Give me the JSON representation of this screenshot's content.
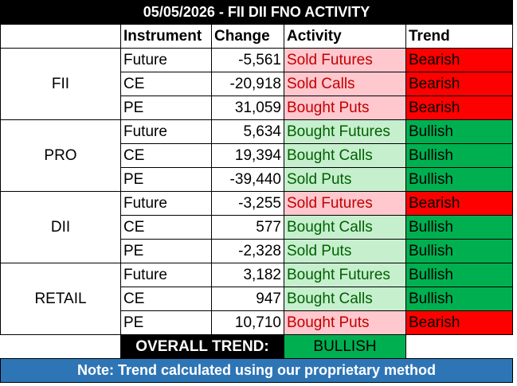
{
  "title": "05/05/2026 - FII DII FNO ACTIVITY",
  "headers": {
    "instrument": "Instrument",
    "change": "Change",
    "activity": "Activity",
    "trend": "Trend"
  },
  "groups": [
    {
      "entity": "FII",
      "rows": [
        {
          "instrument": "Future",
          "change": "-5,561",
          "activity": "Sold Futures",
          "activity_tone": "red",
          "trend": "Bearish",
          "trend_tone": "red"
        },
        {
          "instrument": "CE",
          "change": "-20,918",
          "activity": "Sold Calls",
          "activity_tone": "red",
          "trend": "Bearish",
          "trend_tone": "red"
        },
        {
          "instrument": "PE",
          "change": "31,059",
          "activity": "Bought Puts",
          "activity_tone": "red",
          "trend": "Bearish",
          "trend_tone": "red"
        }
      ]
    },
    {
      "entity": "PRO",
      "rows": [
        {
          "instrument": "Future",
          "change": "5,634",
          "activity": "Bought Futures",
          "activity_tone": "green",
          "trend": "Bullish",
          "trend_tone": "green"
        },
        {
          "instrument": "CE",
          "change": "19,394",
          "activity": "Bought Calls",
          "activity_tone": "green",
          "trend": "Bullish",
          "trend_tone": "green"
        },
        {
          "instrument": "PE",
          "change": "-39,440",
          "activity": "Sold Puts",
          "activity_tone": "green",
          "trend": "Bullish",
          "trend_tone": "green"
        }
      ]
    },
    {
      "entity": "DII",
      "rows": [
        {
          "instrument": "Future",
          "change": "-3,255",
          "activity": "Sold Futures",
          "activity_tone": "red",
          "trend": "Bearish",
          "trend_tone": "red"
        },
        {
          "instrument": "CE",
          "change": "577",
          "activity": "Bought Calls",
          "activity_tone": "green",
          "trend": "Bullish",
          "trend_tone": "green"
        },
        {
          "instrument": "PE",
          "change": "-2,328",
          "activity": "Sold Puts",
          "activity_tone": "green",
          "trend": "Bullish",
          "trend_tone": "green"
        }
      ]
    },
    {
      "entity": "RETAIL",
      "rows": [
        {
          "instrument": "Future",
          "change": "3,182",
          "activity": "Bought Futures",
          "activity_tone": "green",
          "trend": "Bullish",
          "trend_tone": "green"
        },
        {
          "instrument": "CE",
          "change": "947",
          "activity": "Bought Calls",
          "activity_tone": "green",
          "trend": "Bullish",
          "trend_tone": "green"
        },
        {
          "instrument": "PE",
          "change": "10,710",
          "activity": "Bought Puts",
          "activity_tone": "red",
          "trend": "Bearish",
          "trend_tone": "red"
        }
      ]
    }
  ],
  "overall": {
    "label": "OVERALL TREND:",
    "value": "BULLISH"
  },
  "note": "Note: Trend calculated using our proprietary method",
  "colors": {
    "title_bg": "#000000",
    "activity_red_bg": "#ffc7ce",
    "activity_red_text": "#c00000",
    "activity_green_bg": "#c6efce",
    "activity_green_text": "#006100",
    "trend_red": "#ff0000",
    "trend_green": "#00b050",
    "note_bg": "#2e75b6"
  }
}
